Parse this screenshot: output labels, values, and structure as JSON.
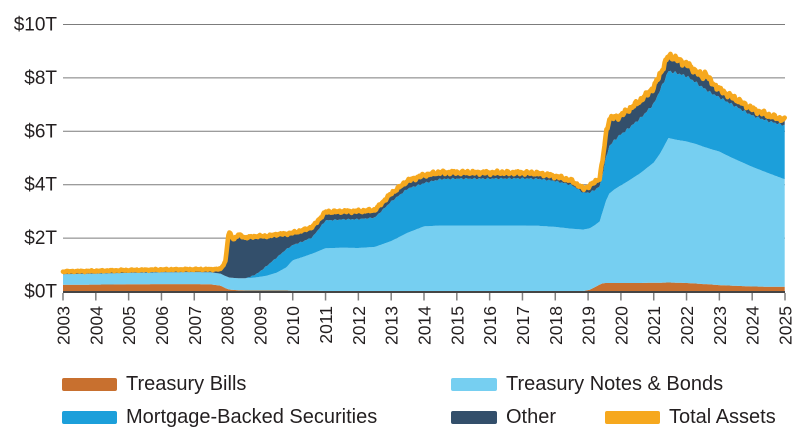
{
  "chart_data": {
    "type": "area",
    "stacked": true,
    "title": "",
    "xlabel": "",
    "ylabel": "",
    "unit": "trillions of US dollars",
    "grid": true,
    "x_ticks": [
      2003,
      2004,
      2005,
      2006,
      2007,
      2008,
      2009,
      2010,
      2011,
      2012,
      2013,
      2014,
      2015,
      2016,
      2017,
      2018,
      2019,
      2020,
      2021,
      2022,
      2023,
      2024,
      2025
    ],
    "y_ticks": [
      {
        "value": 0,
        "label": "$0T"
      },
      {
        "value": 2,
        "label": "$2T"
      },
      {
        "value": 4,
        "label": "$4T"
      },
      {
        "value": 6,
        "label": "$6T"
      },
      {
        "value": 8,
        "label": "$8T"
      },
      {
        "value": 10,
        "label": "$10T"
      }
    ],
    "x_range": [
      2003,
      2025
    ],
    "y_range": [
      0,
      10
    ],
    "series_order": [
      "Treasury Bills",
      "Treasury Notes & Bonds",
      "Mortgage-Backed Securities",
      "Other"
    ],
    "total_line_name": "Total Assets",
    "points_format": [
      "year",
      "treasury_bills_T",
      "treasury_notes_bonds_T",
      "mortgage_backed_securities_T",
      "other_T"
    ],
    "points": [
      [
        2003.0,
        0.23,
        0.4,
        0,
        0.1
      ],
      [
        2004.0,
        0.24,
        0.41,
        0,
        0.1
      ],
      [
        2005.0,
        0.25,
        0.43,
        0,
        0.1
      ],
      [
        2006.0,
        0.26,
        0.44,
        0,
        0.1
      ],
      [
        2007.0,
        0.26,
        0.45,
        0,
        0.1
      ],
      [
        2007.5,
        0.25,
        0.45,
        0,
        0.11
      ],
      [
        2007.8,
        0.2,
        0.45,
        0,
        0.17
      ],
      [
        2007.95,
        0.11,
        0.45,
        0,
        0.55
      ],
      [
        2008.05,
        0.06,
        0.45,
        0,
        1.7
      ],
      [
        2008.2,
        0.04,
        0.45,
        0,
        1.45
      ],
      [
        2008.35,
        0.03,
        0.45,
        0,
        1.63
      ],
      [
        2008.55,
        0.02,
        0.46,
        0,
        1.52
      ],
      [
        2008.75,
        0.02,
        0.47,
        0.06,
        1.48
      ],
      [
        2008.95,
        0.02,
        0.5,
        0.16,
        1.38
      ],
      [
        2009.2,
        0.02,
        0.55,
        0.36,
        1.12
      ],
      [
        2009.5,
        0.02,
        0.66,
        0.56,
        0.88
      ],
      [
        2009.8,
        0.02,
        0.86,
        0.68,
        0.58
      ],
      [
        2010.0,
        0.01,
        1.14,
        0.57,
        0.46
      ],
      [
        2010.3,
        0.01,
        1.26,
        0.58,
        0.42
      ],
      [
        2010.6,
        0.01,
        1.39,
        0.62,
        0.38
      ],
      [
        2011.0,
        0,
        1.6,
        1.04,
        0.32
      ],
      [
        2011.5,
        0,
        1.62,
        1.06,
        0.3
      ],
      [
        2012.0,
        0,
        1.61,
        1.08,
        0.3
      ],
      [
        2012.5,
        0,
        1.65,
        1.1,
        0.28
      ],
      [
        2013.0,
        0,
        1.87,
        1.48,
        0.3
      ],
      [
        2013.5,
        0,
        2.18,
        1.65,
        0.3
      ],
      [
        2014.0,
        0,
        2.42,
        1.62,
        0.3
      ],
      [
        2014.5,
        0,
        2.45,
        1.74,
        0.25
      ],
      [
        2015.0,
        0,
        2.45,
        1.76,
        0.23
      ],
      [
        2016.0,
        0,
        2.45,
        1.76,
        0.22
      ],
      [
        2017.0,
        0,
        2.45,
        1.77,
        0.21
      ],
      [
        2017.5,
        0,
        2.44,
        1.76,
        0.2
      ],
      [
        2018.0,
        0,
        2.4,
        1.72,
        0.18
      ],
      [
        2018.5,
        0,
        2.33,
        1.64,
        0.16
      ],
      [
        2018.85,
        0,
        2.3,
        1.38,
        0.15
      ],
      [
        2019.05,
        0.05,
        2.3,
        1.34,
        0.25
      ],
      [
        2019.2,
        0.14,
        2.32,
        1.32,
        0.3
      ],
      [
        2019.35,
        0.24,
        2.36,
        1.32,
        0.3
      ],
      [
        2019.45,
        0.29,
        2.7,
        1.42,
        0.55
      ],
      [
        2019.55,
        0.3,
        3.1,
        1.62,
        0.93
      ],
      [
        2019.65,
        0.3,
        3.35,
        1.78,
        1.02
      ],
      [
        2019.8,
        0.3,
        3.5,
        1.85,
        0.85
      ],
      [
        2019.95,
        0.3,
        3.62,
        1.9,
        0.72
      ],
      [
        2020.2,
        0.3,
        3.8,
        1.96,
        0.7
      ],
      [
        2020.6,
        0.3,
        4.12,
        2.06,
        0.66
      ],
      [
        2021.0,
        0.31,
        4.5,
        2.2,
        0.62
      ],
      [
        2021.2,
        0.31,
        4.85,
        2.38,
        0.6
      ],
      [
        2021.45,
        0.32,
        5.41,
        2.51,
        0.58
      ],
      [
        2021.7,
        0.31,
        5.35,
        2.5,
        0.52
      ],
      [
        2022.0,
        0.3,
        5.3,
        2.45,
        0.45
      ],
      [
        2022.3,
        0.28,
        5.22,
        2.3,
        0.42
      ],
      [
        2022.5,
        0.26,
        5.15,
        2.2,
        0.4
      ],
      [
        2022.58,
        0.26,
        5.12,
        2.18,
        0.62
      ],
      [
        2022.7,
        0.25,
        5.08,
        2.12,
        0.45
      ],
      [
        2023.0,
        0.22,
        5.0,
        2.03,
        0.3
      ],
      [
        2023.4,
        0.2,
        4.78,
        2.0,
        0.28
      ],
      [
        2024.0,
        0.17,
        4.48,
        1.92,
        0.25
      ],
      [
        2024.5,
        0.16,
        4.25,
        1.95,
        0.22
      ],
      [
        2025.0,
        0.16,
        4.02,
        2.02,
        0.2
      ]
    ],
    "legend": {
      "position": "bottom",
      "items": [
        {
          "label": "Treasury Bills",
          "color": "#C8702F"
        },
        {
          "label": "Treasury Notes & Bonds",
          "color": "#76CFF1"
        },
        {
          "label": "Mortgage-Backed Securities",
          "color": "#1C9FDA"
        },
        {
          "label": "Other",
          "color": "#334F6B"
        },
        {
          "label": "Total Assets",
          "color": "#F6A81E"
        }
      ]
    },
    "colors": {
      "bills": "#C8702F",
      "notes": "#76CFF1",
      "mbs": "#1C9FDA",
      "other": "#334F6B",
      "total": "#F6A81E",
      "grid": "#7C7C7C",
      "axis": "#454545",
      "tick": "#808080",
      "text": "#231F20"
    }
  }
}
